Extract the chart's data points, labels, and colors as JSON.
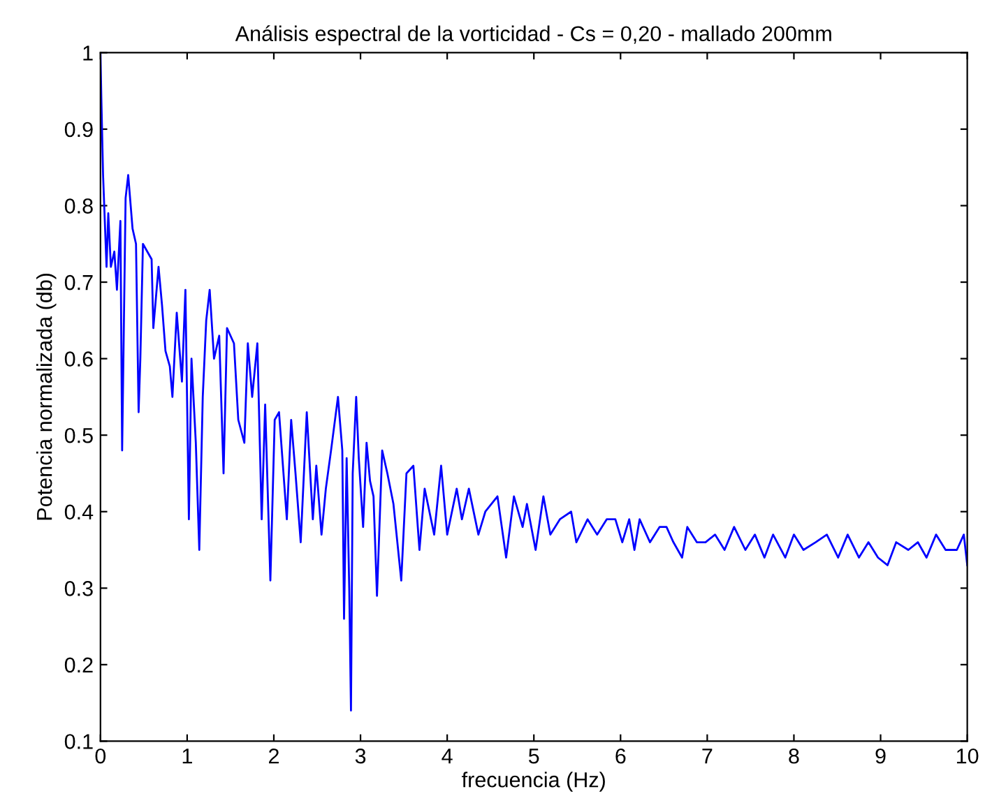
{
  "chart_data": {
    "type": "line",
    "title": "Análisis espectral de la vorticidad - Cs = 0,20 - mallado 200mm",
    "xlabel": "frecuencia (Hz)",
    "ylabel": "Potencia normalizada (db)",
    "series": [
      {
        "color": "#0000ff",
        "x": [
          0,
          0.01,
          0.03,
          0.07,
          0.09,
          0.12,
          0.16,
          0.19,
          0.23,
          0.25,
          0.29,
          0.32,
          0.37,
          0.41,
          0.44,
          0.46,
          0.49,
          0.59,
          0.61,
          0.67,
          0.71,
          0.75,
          0.8,
          0.83,
          0.88,
          0.94,
          0.98,
          1.02,
          1.05,
          1.1,
          1.14,
          1.18,
          1.22,
          1.26,
          1.31,
          1.37,
          1.42,
          1.46,
          1.54,
          1.59,
          1.66,
          1.7,
          1.75,
          1.81,
          1.86,
          1.9,
          1.96,
          2.01,
          2.06,
          2.15,
          2.2,
          2.25,
          2.31,
          2.38,
          2.45,
          2.49,
          2.55,
          2.6,
          2.66,
          2.74,
          2.79,
          2.81,
          2.84,
          2.87,
          2.89,
          2.91,
          2.95,
          2.98,
          3.03,
          3.07,
          3.11,
          3.15,
          3.19,
          3.25,
          3.31,
          3.38,
          3.47,
          3.53,
          3.61,
          3.68,
          3.74,
          3.85,
          3.93,
          4.0,
          4.11,
          4.17,
          4.25,
          4.36,
          4.44,
          4.58,
          4.68,
          4.77,
          4.87,
          4.92,
          5.02,
          5.11,
          5.19,
          5.3,
          5.43,
          5.49,
          5.62,
          5.73,
          5.84,
          5.94,
          6.02,
          6.1,
          6.16,
          6.22,
          6.34,
          6.45,
          6.53,
          6.61,
          6.71,
          6.77,
          6.88,
          6.98,
          7.09,
          7.2,
          7.31,
          7.44,
          7.55,
          7.66,
          7.76,
          7.9,
          8.0,
          8.11,
          8.25,
          8.38,
          8.51,
          8.62,
          8.75,
          8.86,
          8.97,
          9.08,
          9.18,
          9.32,
          9.43,
          9.53,
          9.64,
          9.75,
          9.88,
          9.96,
          10.0
        ],
        "values": [
          1.0,
          0.94,
          0.84,
          0.72,
          0.79,
          0.72,
          0.74,
          0.69,
          0.78,
          0.48,
          0.81,
          0.84,
          0.77,
          0.75,
          0.53,
          0.6,
          0.75,
          0.73,
          0.64,
          0.72,
          0.67,
          0.61,
          0.59,
          0.55,
          0.66,
          0.57,
          0.69,
          0.39,
          0.6,
          0.49,
          0.35,
          0.55,
          0.65,
          0.69,
          0.6,
          0.63,
          0.45,
          0.64,
          0.62,
          0.52,
          0.49,
          0.62,
          0.55,
          0.62,
          0.39,
          0.54,
          0.31,
          0.52,
          0.53,
          0.39,
          0.52,
          0.45,
          0.36,
          0.53,
          0.39,
          0.46,
          0.37,
          0.43,
          0.48,
          0.55,
          0.48,
          0.26,
          0.47,
          0.3,
          0.14,
          0.45,
          0.55,
          0.47,
          0.38,
          0.49,
          0.44,
          0.42,
          0.29,
          0.48,
          0.45,
          0.41,
          0.31,
          0.45,
          0.46,
          0.35,
          0.43,
          0.37,
          0.46,
          0.37,
          0.43,
          0.39,
          0.43,
          0.37,
          0.4,
          0.42,
          0.34,
          0.42,
          0.38,
          0.41,
          0.35,
          0.42,
          0.37,
          0.39,
          0.4,
          0.36,
          0.39,
          0.37,
          0.39,
          0.39,
          0.36,
          0.39,
          0.35,
          0.39,
          0.36,
          0.38,
          0.38,
          0.36,
          0.34,
          0.38,
          0.36,
          0.36,
          0.37,
          0.35,
          0.38,
          0.35,
          0.37,
          0.34,
          0.37,
          0.34,
          0.37,
          0.35,
          0.36,
          0.37,
          0.34,
          0.37,
          0.34,
          0.36,
          0.34,
          0.33,
          0.36,
          0.35,
          0.36,
          0.34,
          0.37,
          0.35,
          0.35,
          0.37,
          0.33
        ]
      }
    ],
    "xlim": [
      0,
      10
    ],
    "ylim": [
      0.1,
      1
    ],
    "xticks": [
      0,
      1,
      2,
      3,
      4,
      5,
      6,
      7,
      8,
      9,
      10
    ],
    "yticks": [
      0.1,
      0.2,
      0.3,
      0.4,
      0.5,
      0.6,
      0.7,
      0.8,
      0.9,
      1
    ],
    "grid": false,
    "marker": "none",
    "line_style": "solid"
  }
}
